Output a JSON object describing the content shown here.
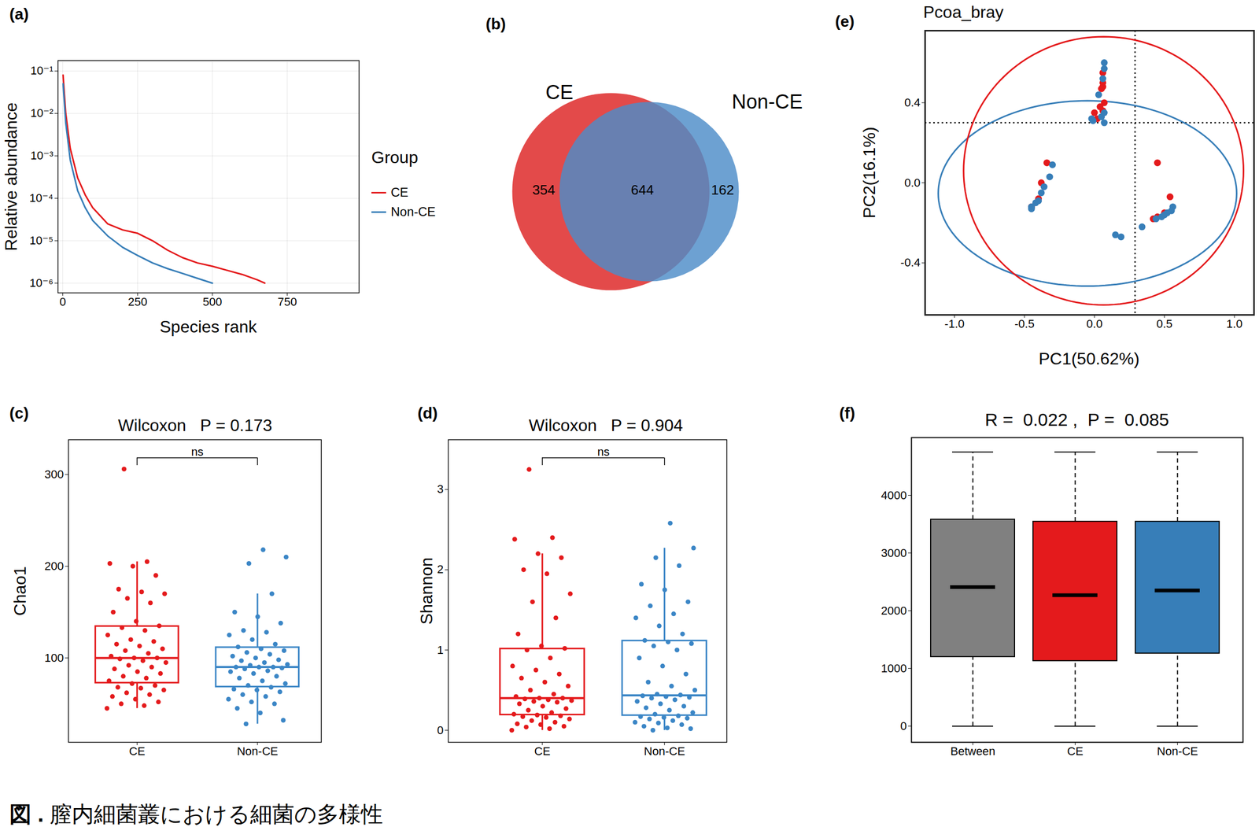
{
  "chart_data": [
    {
      "panel": "(a)",
      "type": "line",
      "x_label": "Species rank",
      "y_label": "Relative abundance",
      "x": [
        1,
        10,
        25,
        50,
        75,
        100,
        150,
        200,
        250,
        300,
        350,
        400,
        450,
        500,
        550,
        600,
        650,
        675
      ],
      "xlim": [
        -16,
        990
      ],
      "xticks": [
        0,
        250,
        500,
        750
      ],
      "log": "y",
      "ylim": [
        5.9e-07,
        0.176
      ],
      "yticks": [
        {
          "value": 0.1,
          "label": "10⁻¹"
        },
        {
          "value": 0.01,
          "label": "10⁻²"
        },
        {
          "value": 0.001,
          "label": "10⁻³"
        },
        {
          "value": 0.0001,
          "label": "10⁻⁴"
        },
        {
          "value": 1e-05,
          "label": "10⁻⁵"
        },
        {
          "value": 1e-06,
          "label": "10⁻⁶"
        }
      ],
      "grid": true,
      "legend": "right",
      "legend_title": "Group",
      "series": [
        {
          "name": "CE",
          "color": "#e41a1c",
          "values": [
            0.08,
            0.01,
            0.0015,
            0.0003,
            0.00012,
            6e-05,
            2.5e-05,
            1.8e-05,
            1.5e-05,
            1e-05,
            6e-06,
            4e-06,
            3e-06,
            2.5e-06,
            2e-06,
            1.6e-06,
            1.2e-06,
            1e-06
          ]
        },
        {
          "name": "Non-CE",
          "color": "#377eb8",
          "values": [
            0.05,
            0.006,
            0.0008,
            0.00015,
            6e-05,
            3e-05,
            1.3e-05,
            7e-06,
            4.5e-06,
            3e-06,
            2.2e-06,
            1.7e-06,
            1.3e-06,
            1e-06,
            null,
            null,
            null,
            null
          ]
        }
      ]
    },
    {
      "panel": "(b)",
      "type": "venn",
      "sets": [
        {
          "name": "CE",
          "color": "#e34a4a"
        },
        {
          "name": "Non-CE",
          "color": "#4d8cc8"
        }
      ],
      "regions": [
        {
          "sets": [
            "CE"
          ],
          "value": 354
        },
        {
          "sets": [
            "CE",
            "Non-CE"
          ],
          "value": 644
        },
        {
          "sets": [
            "Non-CE"
          ],
          "value": 162
        }
      ]
    },
    {
      "panel": "(c)",
      "type": "box",
      "title": "Wilcoxon   P = 0.173",
      "annotation": "ns",
      "y_label": "Chao1",
      "categories": [
        "CE",
        "Non-CE"
      ],
      "colors": [
        "#e41a1c",
        "#3b86c6"
      ],
      "values": [
        [
          45,
          48,
          50,
          52,
          55,
          58,
          60,
          62,
          65,
          67,
          68,
          70,
          72,
          75,
          78,
          80,
          83,
          85,
          88,
          90,
          92,
          95,
          97,
          99,
          100,
          100,
          102,
          105,
          108,
          110,
          113,
          115,
          118,
          120,
          125,
          130,
          133,
          135,
          140,
          150,
          160,
          165,
          170,
          172,
          175,
          190,
          200,
          203,
          205,
          306
        ],
        [
          28,
          32,
          40,
          45,
          50,
          52,
          55,
          58,
          60,
          63,
          65,
          66,
          68,
          70,
          72,
          75,
          78,
          80,
          83,
          85,
          86,
          88,
          89,
          90,
          90,
          90,
          92,
          93,
          95,
          97,
          98,
          100,
          102,
          104,
          106,
          108,
          110,
          112,
          115,
          120,
          125,
          128,
          130,
          138,
          145,
          150,
          170,
          203,
          210,
          218
        ]
      ],
      "ylim": [
        8,
        338
      ],
      "yticks": [
        100,
        200,
        300
      ]
    },
    {
      "panel": "(d)",
      "type": "box",
      "title": "Wilcoxon   P = 0.904",
      "annotation": "ns",
      "y_label": "Shannon",
      "categories": [
        "CE",
        "Non-CE"
      ],
      "colors": [
        "#e41a1c",
        "#3b86c6"
      ],
      "values": [
        [
          0.0,
          0.02,
          0.04,
          0.05,
          0.07,
          0.08,
          0.1,
          0.12,
          0.14,
          0.16,
          0.17,
          0.18,
          0.19,
          0.2,
          0.22,
          0.25,
          0.27,
          0.3,
          0.33,
          0.35,
          0.36,
          0.37,
          0.38,
          0.39,
          0.4,
          0.4,
          0.42,
          0.45,
          0.5,
          0.55,
          0.6,
          0.65,
          0.7,
          0.75,
          0.8,
          0.9,
          1.0,
          1.02,
          1.05,
          1.2,
          1.4,
          1.6,
          1.7,
          1.95,
          2.0,
          2.15,
          2.2,
          2.38,
          2.4,
          3.25
        ],
        [
          0.0,
          0.02,
          0.03,
          0.05,
          0.07,
          0.09,
          0.1,
          0.12,
          0.14,
          0.15,
          0.16,
          0.17,
          0.18,
          0.2,
          0.22,
          0.25,
          0.28,
          0.3,
          0.33,
          0.36,
          0.38,
          0.4,
          0.41,
          0.42,
          0.43,
          0.44,
          0.45,
          0.5,
          0.55,
          0.6,
          0.7,
          0.8,
          0.9,
          1.0,
          1.05,
          1.08,
          1.1,
          1.12,
          1.2,
          1.3,
          1.4,
          1.45,
          1.55,
          1.6,
          1.75,
          1.82,
          2.05,
          2.15,
          2.27,
          2.58
        ]
      ],
      "ylim": [
        -0.15,
        3.62
      ],
      "yticks": [
        0,
        1,
        2,
        3
      ]
    },
    {
      "panel": "(e)",
      "type": "scatter",
      "title": "Pcoa_bray",
      "x_label": "PC1(50.62%)",
      "y_label": "PC2(16.1%)",
      "xlim": [
        -1.21,
        1.14
      ],
      "xticks": [
        {
          "value": -1,
          "label": "-1.0"
        },
        -0.5,
        {
          "value": 0,
          "label": "0.0"
        },
        0.5,
        {
          "value": 1,
          "label": "1.0"
        }
      ],
      "ylim": [
        -0.66,
        0.76
      ],
      "yticks": [
        -0.4,
        {
          "value": 0,
          "label": "0.0"
        },
        0.4
      ],
      "x_reference": 0.29,
      "y_reference": 0.3,
      "series": [
        {
          "name": "CE",
          "color": "#e41a1c",
          "x": [
            0.02,
            0.06,
            0.06,
            0.06,
            0.05,
            0.07,
            0.06,
            0.04,
            0.0,
            -0.34,
            -0.38,
            -0.45,
            -0.4,
            0.45,
            0.54,
            0.45,
            0.5,
            0.42
          ],
          "y": [
            0.32,
            0.55,
            0.5,
            0.48,
            0.47,
            0.4,
            0.36,
            0.38,
            0.35,
            0.1,
            0.0,
            -0.12,
            -0.08,
            0.1,
            -0.07,
            -0.17,
            -0.15,
            -0.18
          ]
        },
        {
          "name": "Non-CE",
          "color": "#377eb8",
          "x": [
            0.07,
            0.07,
            0.06,
            -0.02,
            -0.01,
            0.05,
            0.07,
            0.07,
            0.03,
            -0.3,
            -0.32,
            -0.36,
            -0.38,
            -0.42,
            -0.45,
            -0.45,
            -0.4,
            0.56,
            0.55,
            0.52,
            0.5,
            0.48,
            0.44,
            0.34,
            0.15,
            0.19
          ],
          "y": [
            0.6,
            0.57,
            0.52,
            0.32,
            0.31,
            0.33,
            0.35,
            0.3,
            0.44,
            0.09,
            0.03,
            -0.02,
            -0.05,
            -0.1,
            -0.12,
            -0.13,
            -0.09,
            -0.12,
            -0.14,
            -0.15,
            -0.16,
            -0.17,
            -0.18,
            -0.22,
            -0.26,
            -0.27
          ]
        }
      ],
      "ellipses": [
        {
          "name": "Non-CE",
          "cx": -0.05,
          "cy": -0.053,
          "rx": 1.066,
          "ry": 0.463
        },
        {
          "name": "CE",
          "cx": 0.065,
          "cy": 0.06,
          "rx": 1.0,
          "ry": 0.67
        }
      ]
    },
    {
      "panel": "(f)",
      "type": "box",
      "title": "R =  0.022 ,  P =  0.085",
      "categories": [
        "Between",
        "CE",
        "Non-CE"
      ],
      "colors": [
        "#808080",
        "#e41a1c",
        "#377eb8"
      ],
      "min": [
        0,
        0,
        0
      ],
      "q1": [
        1200,
        1130,
        1260
      ],
      "median": [
        2410,
        2270,
        2350
      ],
      "q3": [
        3580,
        3545,
        3545
      ],
      "max": [
        4750,
        4750,
        4750
      ],
      "ylim": [
        -280,
        5000
      ],
      "yticks": [
        0,
        1000,
        2000,
        3000,
        4000
      ]
    }
  ],
  "caption_label": "図 .",
  "caption": "膣内細菌叢における細菌の多様性"
}
